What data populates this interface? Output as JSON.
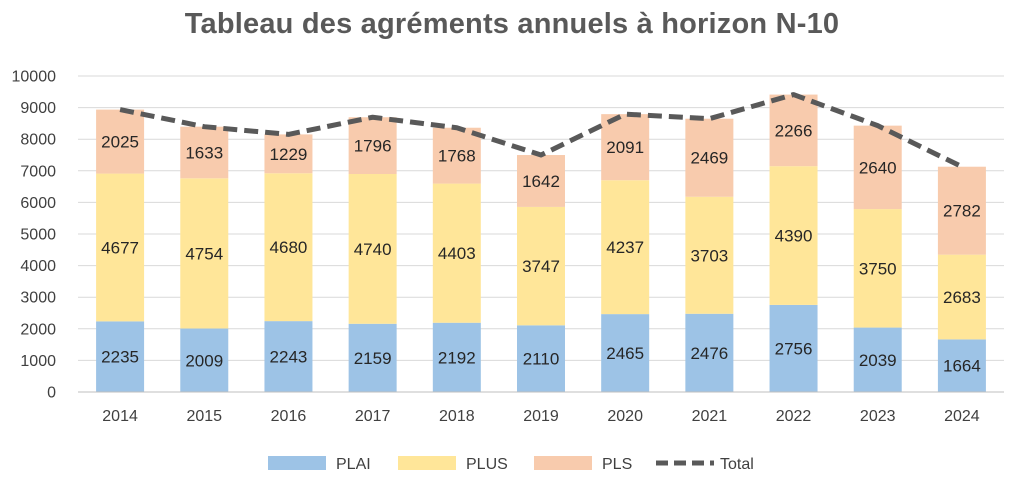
{
  "chart_data": {
    "type": "bar",
    "stacked": true,
    "title": "Tableau des agréments annuels à horizon N-10",
    "categories": [
      "2014",
      "2015",
      "2016",
      "2017",
      "2018",
      "2019",
      "2020",
      "2021",
      "2022",
      "2023",
      "2024"
    ],
    "series": [
      {
        "name": "PLAI",
        "type": "bar",
        "color": "#9DC3E6",
        "values": [
          2235,
          2009,
          2243,
          2159,
          2192,
          2110,
          2465,
          2476,
          2756,
          2039,
          1664
        ]
      },
      {
        "name": "PLUS",
        "type": "bar",
        "color": "#FFE699",
        "values": [
          4677,
          4754,
          4680,
          4740,
          4403,
          3747,
          4237,
          3703,
          4390,
          3750,
          2683
        ]
      },
      {
        "name": "PLS",
        "type": "bar",
        "color": "#F8CBAD",
        "values": [
          2025,
          1633,
          1229,
          1796,
          1768,
          1642,
          2091,
          2469,
          2266,
          2640,
          2782
        ]
      },
      {
        "name": "Total",
        "type": "line",
        "style": "dashed",
        "color": "#595959",
        "values": [
          8937,
          8396,
          8152,
          8695,
          8363,
          7499,
          8793,
          8648,
          9412,
          8429,
          7129
        ]
      }
    ],
    "ylim": [
      0,
      10000
    ],
    "yticks": [
      0,
      1000,
      2000,
      3000,
      4000,
      5000,
      6000,
      7000,
      8000,
      9000,
      10000
    ],
    "grid": true,
    "legend_position": "bottom",
    "xlabel": "",
    "ylabel": ""
  }
}
